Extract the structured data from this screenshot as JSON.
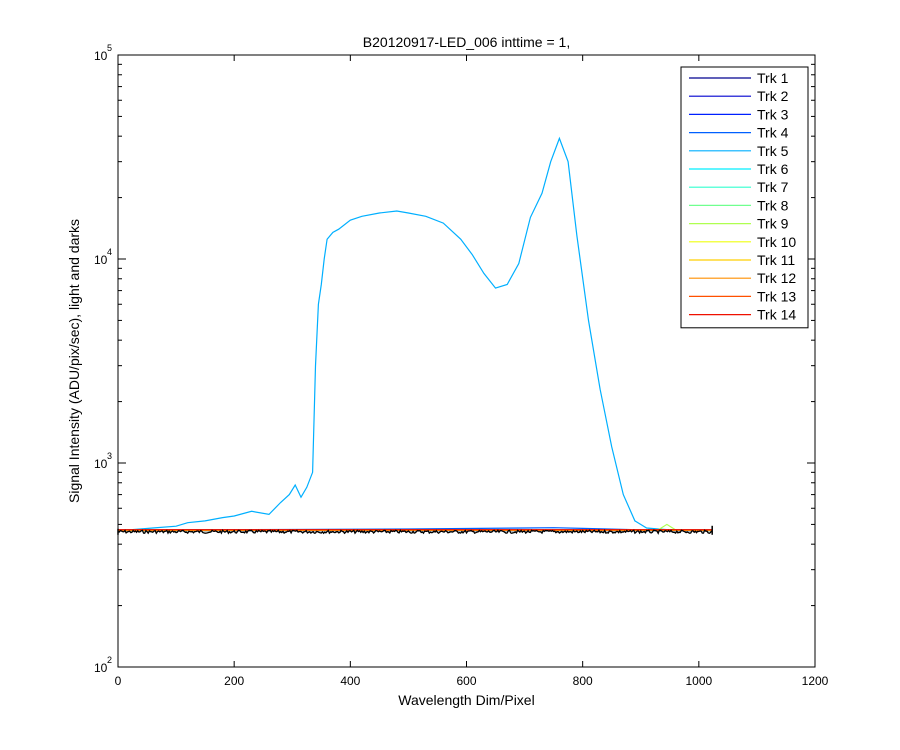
{
  "chart_data": {
    "type": "line",
    "title": "B20120917-LED_006 inttime = 1,",
    "xlabel": "Wavelength Dim/Pixel",
    "ylabel": "Signal Intensity (ADU/pix/sec), light and darks",
    "xlim": [
      0,
      1200
    ],
    "ylim": [
      100,
      100000
    ],
    "yscale": "log",
    "grid": false,
    "legend_position": "top-right",
    "xticks": [
      0,
      200,
      400,
      600,
      800,
      1000,
      1200
    ],
    "xtick_labels": [
      "0",
      "200",
      "400",
      "600",
      "800",
      "1000",
      "1200"
    ],
    "yticks": [
      100,
      1000,
      10000,
      100000
    ],
    "ytick_base": "10",
    "ytick_exponents": [
      "2",
      "3",
      "4",
      "5"
    ],
    "series": [
      {
        "name": "Trk 1",
        "color": "#00008F",
        "x": [
          0,
          1023
        ],
        "y": [
          465,
          465
        ]
      },
      {
        "name": "Trk 2",
        "color": "#0000CF",
        "x": [
          0,
          1023
        ],
        "y": [
          466,
          466
        ]
      },
      {
        "name": "Trk 3",
        "color": "#0020FF",
        "x": [
          0,
          1023
        ],
        "y": [
          467,
          467
        ]
      },
      {
        "name": "Trk 4",
        "color": "#0060FF",
        "x": [
          0,
          300,
          500,
          700,
          750,
          800,
          900,
          1023
        ],
        "y": [
          470,
          472,
          475,
          480,
          482,
          478,
          470,
          468
        ]
      },
      {
        "name": "Trk 5",
        "color": "#00AFFF",
        "x": [
          0,
          20,
          60,
          100,
          120,
          150,
          180,
          200,
          230,
          260,
          280,
          295,
          305,
          315,
          325,
          335,
          340,
          345,
          350,
          355,
          360,
          370,
          380,
          400,
          420,
          450,
          480,
          500,
          530,
          560,
          590,
          610,
          630,
          650,
          670,
          690,
          710,
          730,
          745,
          760,
          775,
          790,
          810,
          830,
          850,
          870,
          890,
          910,
          930,
          950,
          970,
          1000,
          1023
        ],
        "y": [
          470,
          470,
          480,
          490,
          510,
          520,
          540,
          550,
          580,
          560,
          640,
          700,
          780,
          680,
          760,
          900,
          3000,
          6000,
          7500,
          10000,
          12500,
          13500,
          14000,
          15500,
          16200,
          16800,
          17200,
          16800,
          16200,
          15000,
          12500,
          10500,
          8500,
          7200,
          7500,
          9500,
          16000,
          21000,
          30000,
          39000,
          30000,
          13000,
          5000,
          2300,
          1200,
          700,
          520,
          480,
          475,
          470,
          470,
          470,
          470
        ]
      },
      {
        "name": "Trk 6",
        "color": "#00EFFF",
        "x": [
          0,
          1023
        ],
        "y": [
          469,
          469
        ]
      },
      {
        "name": "Trk 7",
        "color": "#30FFCF",
        "x": [
          0,
          1023
        ],
        "y": [
          468,
          468
        ]
      },
      {
        "name": "Trk 8",
        "color": "#70FF8F",
        "x": [
          0,
          1023
        ],
        "y": [
          467,
          467
        ]
      },
      {
        "name": "Trk 9",
        "color": "#AFFF50",
        "x": [
          0,
          930,
          945,
          960,
          1023
        ],
        "y": [
          466,
          470,
          500,
          470,
          466
        ]
      },
      {
        "name": "Trk 10",
        "color": "#EFFF10",
        "x": [
          0,
          1023
        ],
        "y": [
          467,
          467
        ]
      },
      {
        "name": "Trk 11",
        "color": "#FFCF00",
        "x": [
          0,
          1023
        ],
        "y": [
          468,
          468
        ]
      },
      {
        "name": "Trk 12",
        "color": "#FF8F00",
        "x": [
          0,
          1023
        ],
        "y": [
          469,
          469
        ]
      },
      {
        "name": "Trk 13",
        "color": "#FF5000",
        "x": [
          0,
          1023
        ],
        "y": [
          470,
          470
        ]
      },
      {
        "name": "Trk 14",
        "color": "#EF1000",
        "x": [
          0,
          1023
        ],
        "y": [
          471,
          471
        ]
      }
    ],
    "dark_baseline": {
      "color": "#000000",
      "x_start": 0,
      "x_end": 1023,
      "y": 460
    }
  }
}
